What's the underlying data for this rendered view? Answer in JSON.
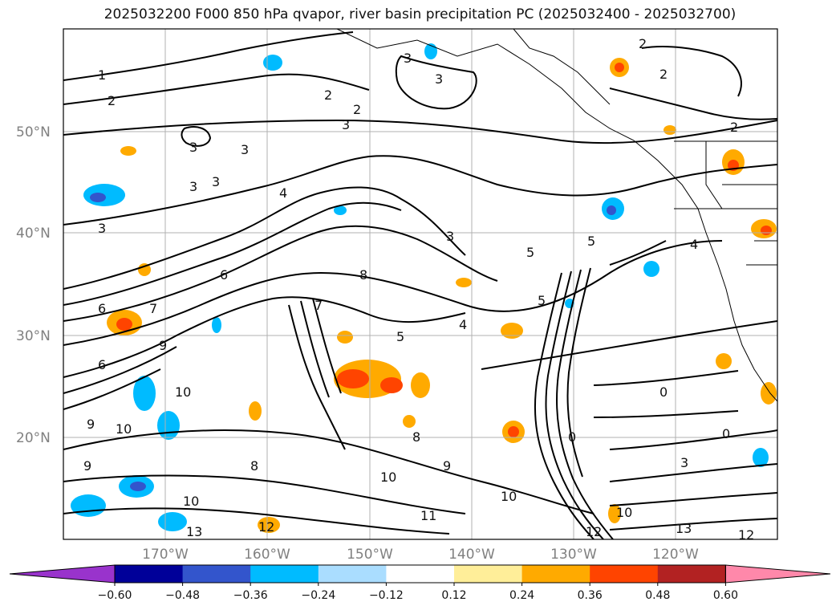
{
  "title": "2025032200 F000 850 hPa qvapor, river basin precipitation PC (2025032400 - 2025032700)",
  "lat_labels": [
    "50°N",
    "40°N",
    "30°N",
    "20°N"
  ],
  "lon_labels": [
    "170°W",
    "160°W",
    "150°W",
    "140°W",
    "130°W",
    "120°W"
  ],
  "colorbar": {
    "ticks": [
      "−0.60",
      "−0.48",
      "−0.36",
      "−0.24",
      "−0.12",
      "0.12",
      "0.24",
      "0.36",
      "0.48",
      "0.60"
    ],
    "colors": [
      "#9933cc",
      "#000099",
      "#3355cc",
      "#00bbff",
      "#aaddff",
      "#ffffff",
      "#ffee99",
      "#ffaa00",
      "#ff4400",
      "#b22222",
      "#ff88aa"
    ]
  },
  "contour_labels": [
    "1",
    "2",
    "3",
    "2",
    "3",
    "2",
    "2",
    "3",
    "3",
    "3",
    "3",
    "3",
    "3",
    "4",
    "5",
    "6",
    "7",
    "8",
    "5",
    "4",
    "5",
    "6",
    "7",
    "3",
    "9",
    "10",
    "10",
    "9",
    "8",
    "9",
    "10",
    "11",
    "12",
    "13",
    "10",
    "0",
    "0",
    "0",
    "3",
    "10",
    "12",
    "13",
    "12",
    "5",
    "4",
    "6",
    "8",
    "10",
    "9",
    "2",
    "2"
  ]
}
